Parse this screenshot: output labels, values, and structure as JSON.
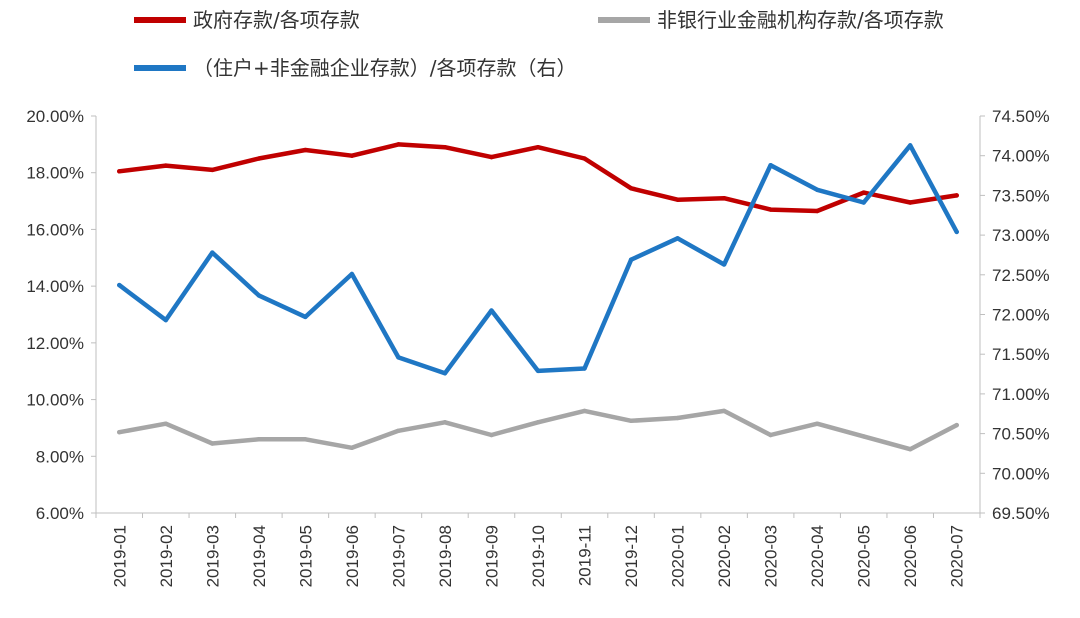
{
  "chart_data": {
    "type": "line",
    "categories": [
      "2019-01",
      "2019-02",
      "2019-03",
      "2019-04",
      "2019-05",
      "2019-06",
      "2019-07",
      "2019-08",
      "2019-09",
      "2019-10",
      "2019-11",
      "2019-12",
      "2020-01",
      "2020-02",
      "2020-03",
      "2020-04",
      "2020-05",
      "2020-06",
      "2020-07"
    ],
    "y_left": {
      "ylim": [
        6,
        20
      ],
      "ticks": [
        "6.00%",
        "8.00%",
        "10.00%",
        "12.00%",
        "14.00%",
        "16.00%",
        "18.00%",
        "20.00%"
      ]
    },
    "y_right": {
      "ylim": [
        69.5,
        74.5
      ],
      "ticks": [
        "69.50%",
        "70.00%",
        "70.50%",
        "71.00%",
        "71.50%",
        "72.00%",
        "72.50%",
        "73.00%",
        "73.50%",
        "74.00%",
        "74.50%"
      ]
    },
    "series": [
      {
        "name": "政府存款/各项存款",
        "axis": "left",
        "color": "#c00000",
        "values": [
          18.05,
          18.25,
          18.1,
          18.5,
          18.8,
          18.6,
          19.0,
          18.9,
          18.55,
          18.9,
          18.5,
          17.45,
          17.05,
          17.1,
          16.7,
          16.65,
          17.3,
          16.95,
          17.2
        ]
      },
      {
        "name": "非银行业金融机构存款/各项存款",
        "axis": "left",
        "color": "#a6a6a6",
        "values": [
          8.85,
          9.15,
          8.45,
          8.6,
          8.6,
          8.3,
          8.9,
          9.2,
          8.75,
          9.2,
          9.6,
          9.25,
          9.35,
          9.6,
          8.75,
          9.15,
          8.7,
          8.25,
          9.1
        ]
      },
      {
        "name": "（住户+非金融企业存款）/各项存款（右）",
        "axis": "right",
        "color": "#1f77c4",
        "values": [
          72.37,
          71.93,
          72.78,
          72.24,
          71.97,
          72.51,
          71.46,
          71.26,
          72.05,
          71.29,
          71.32,
          72.69,
          72.96,
          72.63,
          73.88,
          73.57,
          73.41,
          74.13,
          73.04
        ]
      }
    ],
    "legend_position": "top",
    "grid": false
  }
}
